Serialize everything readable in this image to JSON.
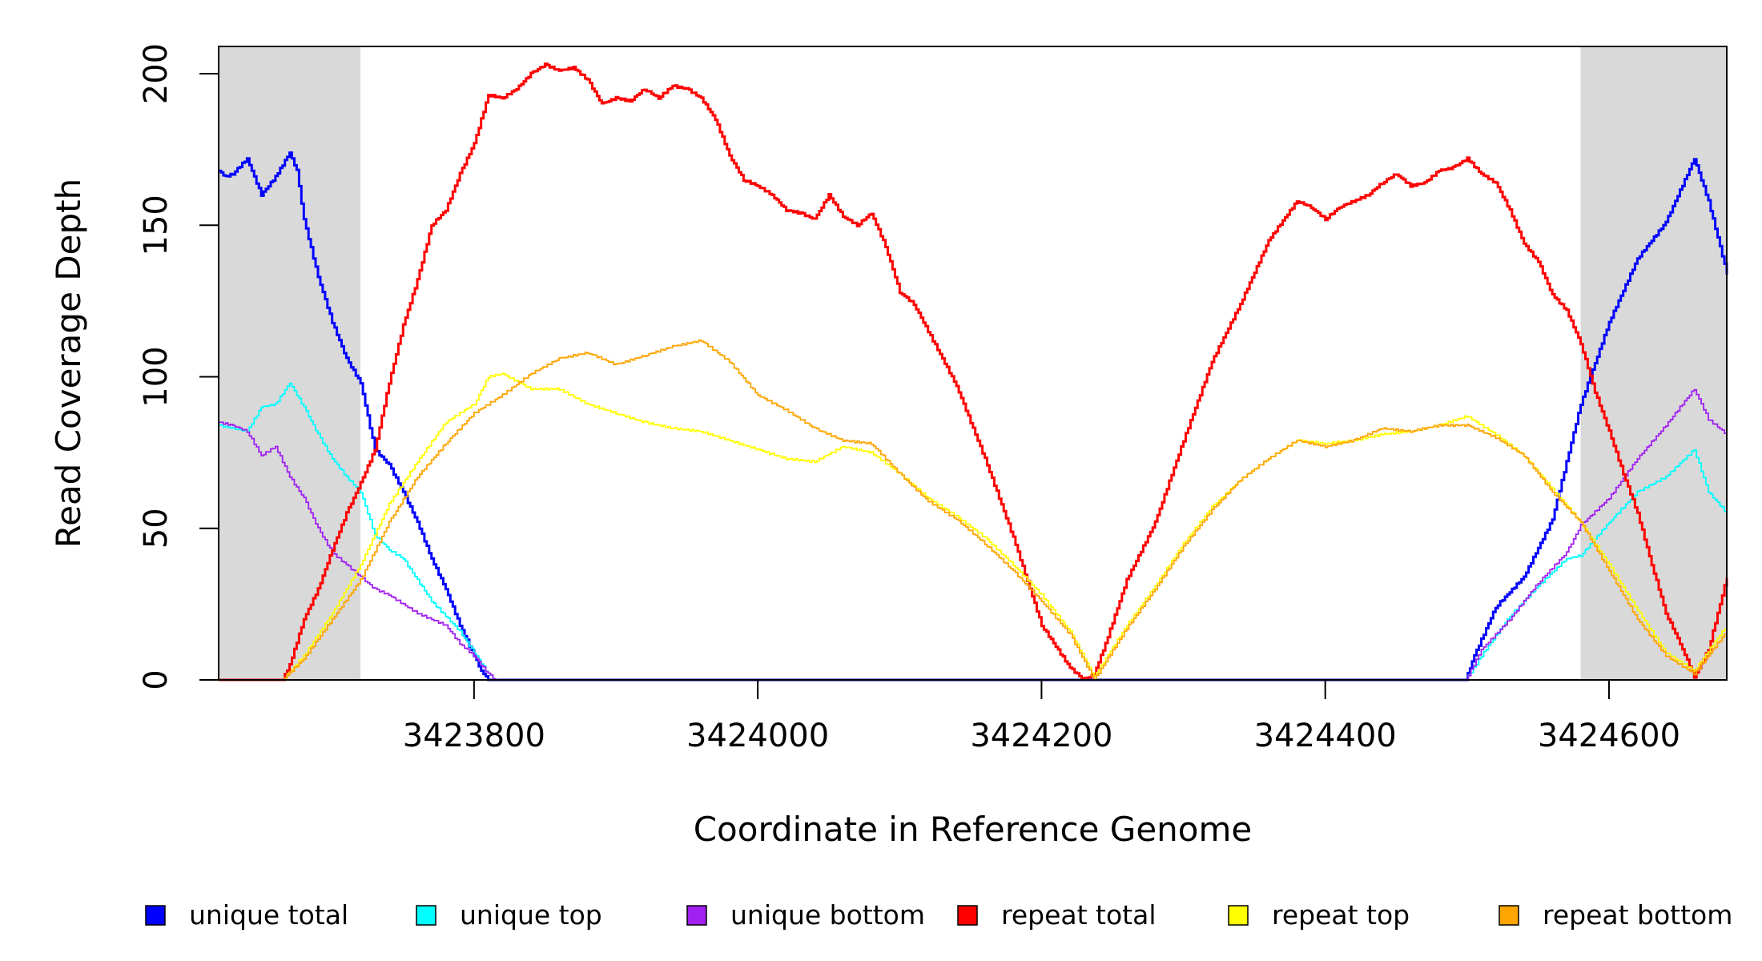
{
  "chart_data": {
    "type": "line",
    "xlabel": "Coordinate in Reference Genome",
    "ylabel": "Read Coverage Depth",
    "xlim": [
      3423620,
      3424683
    ],
    "ylim": [
      0,
      209
    ],
    "x_ticks": [
      3423800,
      3424000,
      3424200,
      3424400,
      3424600
    ],
    "y_ticks": [
      0,
      50,
      100,
      150,
      200
    ],
    "shaded_regions": [
      [
        3423620,
        3423720
      ],
      [
        3424580,
        3424683
      ]
    ],
    "legend_position": "bottom",
    "series": [
      {
        "name": "unique total",
        "color": "#0000ff",
        "width": 3,
        "x": [
          3423620,
          3423625,
          3423630,
          3423640,
          3423650,
          3423660,
          3423670,
          3423675,
          3423680,
          3423690,
          3423700,
          3423710,
          3423720,
          3423730,
          3423740,
          3423750,
          3423760,
          3423770,
          3423780,
          3423790,
          3423800,
          3423805,
          3423810,
          3423815,
          3424499,
          3424505,
          3424520,
          3424540,
          3424560,
          3424580,
          3424600,
          3424620,
          3424640,
          3424660,
          3424670,
          3424683
        ],
        "y": [
          168,
          166,
          167,
          172,
          160,
          166,
          174,
          168,
          152,
          133,
          118,
          106,
          98,
          76,
          71,
          62,
          52,
          40,
          30,
          18,
          8,
          3,
          0,
          0,
          0,
          8,
          24,
          34,
          53,
          91,
          118,
          139,
          151,
          172,
          158,
          134
        ]
      },
      {
        "name": "unique top",
        "color": "#00ffff",
        "width": 1.8,
        "x": [
          3423620,
          3423630,
          3423640,
          3423650,
          3423660,
          3423670,
          3423680,
          3423690,
          3423700,
          3423710,
          3423720,
          3423730,
          3423740,
          3423750,
          3423760,
          3423770,
          3423780,
          3423790,
          3423800,
          3423810,
          3423815,
          3424499,
          3424510,
          3424530,
          3424550,
          3424570,
          3424580,
          3424600,
          3424620,
          3424640,
          3424660,
          3424670,
          3424683
        ],
        "y": [
          84,
          83,
          82,
          90,
          91,
          98,
          90,
          81,
          73,
          67,
          62,
          48,
          43,
          40,
          33,
          26,
          21,
          16,
          9,
          2,
          0,
          0,
          8,
          21,
          31,
          40,
          41,
          52,
          62,
          67,
          76,
          62,
          55
        ]
      },
      {
        "name": "unique bottom",
        "color": "#a020f0",
        "width": 1.8,
        "x": [
          3423620,
          3423630,
          3423640,
          3423650,
          3423660,
          3423670,
          3423680,
          3423690,
          3423700,
          3423710,
          3423720,
          3423730,
          3423740,
          3423760,
          3423780,
          3423790,
          3423800,
          3423810,
          3423815,
          3424499,
          3424510,
          3424530,
          3424550,
          3424570,
          3424580,
          3424600,
          3424620,
          3424640,
          3424660,
          3424670,
          3424683
        ],
        "y": [
          85,
          84,
          82,
          74,
          77,
          67,
          60,
          50,
          42,
          38,
          34,
          30,
          28,
          22,
          18,
          12,
          8,
          2,
          0,
          0,
          10,
          20,
          32,
          42,
          51,
          60,
          73,
          84,
          96,
          86,
          81
        ]
      },
      {
        "name": "repeat total",
        "color": "#ff0000",
        "width": 3,
        "x": [
          3423620,
          3423665,
          3423670,
          3423680,
          3423690,
          3423700,
          3423710,
          3423720,
          3423730,
          3423740,
          3423750,
          3423760,
          3423770,
          3423780,
          3423790,
          3423800,
          3423810,
          3423820,
          3423830,
          3423840,
          3423850,
          3423860,
          3423870,
          3423880,
          3423890,
          3423900,
          3423910,
          3423920,
          3423930,
          3423940,
          3423950,
          3423960,
          3423970,
          3423980,
          3423990,
          3424000,
          3424010,
          3424020,
          3424030,
          3424040,
          3424050,
          3424060,
          3424070,
          3424080,
          3424090,
          3424100,
          3424110,
          3424120,
          3424140,
          3424160,
          3424180,
          3424200,
          3424220,
          3424230,
          3424237,
          3424245,
          3424260,
          3424280,
          3424300,
          3424320,
          3424340,
          3424360,
          3424380,
          3424390,
          3424400,
          3424410,
          3424420,
          3424430,
          3424440,
          3424450,
          3424460,
          3424470,
          3424480,
          3424490,
          3424500,
          3424510,
          3424520,
          3424530,
          3424540,
          3424550,
          3424560,
          3424570,
          3424580,
          3424590,
          3424600,
          3424610,
          3424620,
          3424630,
          3424640,
          3424650,
          3424660,
          3424670,
          3424683
        ],
        "y": [
          0,
          0,
          5,
          20,
          30,
          43,
          55,
          65,
          76,
          98,
          117,
          132,
          150,
          155,
          167,
          177,
          193,
          192,
          195,
          200,
          203,
          201,
          202,
          198,
          190,
          192,
          191,
          195,
          192,
          196,
          195,
          192,
          185,
          173,
          165,
          163,
          160,
          155,
          154,
          152,
          160,
          153,
          150,
          154,
          143,
          128,
          124,
          115,
          97,
          73,
          47,
          18,
          4,
          0,
          2,
          12,
          33,
          52,
          79,
          105,
          124,
          145,
          158,
          156,
          152,
          156,
          158,
          160,
          164,
          167,
          163,
          164,
          168,
          169,
          172,
          167,
          164,
          155,
          144,
          138,
          127,
          122,
          111,
          95,
          82,
          68,
          55,
          38,
          22,
          12,
          1,
          10,
          34
        ]
      },
      {
        "name": "repeat top",
        "color": "#ffff00",
        "width": 1.8,
        "x": [
          3423620,
          3423665,
          3423680,
          3423700,
          3423720,
          3423740,
          3423760,
          3423780,
          3423800,
          3423810,
          3423820,
          3423840,
          3423860,
          3423880,
          3423900,
          3423920,
          3423940,
          3423960,
          3423980,
          3424000,
          3424020,
          3424040,
          3424060,
          3424080,
          3424100,
          3424120,
          3424140,
          3424160,
          3424180,
          3424200,
          3424220,
          3424237,
          3424260,
          3424280,
          3424300,
          3424320,
          3424340,
          3424360,
          3424380,
          3424400,
          3424420,
          3424440,
          3424460,
          3424480,
          3424500,
          3424520,
          3424540,
          3424560,
          3424580,
          3424600,
          3424620,
          3424640,
          3424660,
          3424683
        ],
        "y": [
          0,
          0,
          8,
          22,
          38,
          58,
          72,
          85,
          91,
          100,
          101,
          96,
          96,
          91,
          88,
          85,
          83,
          82,
          79,
          76,
          73,
          72,
          77,
          75,
          68,
          60,
          54,
          47,
          38,
          28,
          16,
          1,
          18,
          31,
          45,
          57,
          66,
          73,
          79,
          78,
          79,
          81,
          82,
          84,
          87,
          81,
          74,
          63,
          52,
          38,
          23,
          9,
          3,
          18
        ]
      },
      {
        "name": "repeat bottom",
        "color": "#ffa500",
        "width": 1.8,
        "x": [
          3423620,
          3423665,
          3423680,
          3423700,
          3423720,
          3423740,
          3423760,
          3423780,
          3423800,
          3423820,
          3423840,
          3423860,
          3423880,
          3423900,
          3423920,
          3423940,
          3423960,
          3423980,
          3424000,
          3424020,
          3424040,
          3424060,
          3424080,
          3424100,
          3424120,
          3424140,
          3424160,
          3424180,
          3424200,
          3424220,
          3424237,
          3424260,
          3424280,
          3424300,
          3424320,
          3424340,
          3424360,
          3424380,
          3424400,
          3424420,
          3424440,
          3424460,
          3424480,
          3424500,
          3424520,
          3424540,
          3424560,
          3424580,
          3424600,
          3424620,
          3424640,
          3424660,
          3424683
        ],
        "y": [
          0,
          0,
          7,
          20,
          33,
          52,
          67,
          78,
          88,
          94,
          101,
          106,
          108,
          104,
          107,
          110,
          112,
          105,
          94,
          89,
          83,
          79,
          78,
          68,
          59,
          53,
          45,
          36,
          26,
          15,
          0,
          17,
          30,
          44,
          56,
          66,
          73,
          79,
          77,
          79,
          83,
          82,
          84,
          84,
          80,
          74,
          62,
          52,
          36,
          20,
          8,
          2,
          16
        ]
      }
    ]
  }
}
